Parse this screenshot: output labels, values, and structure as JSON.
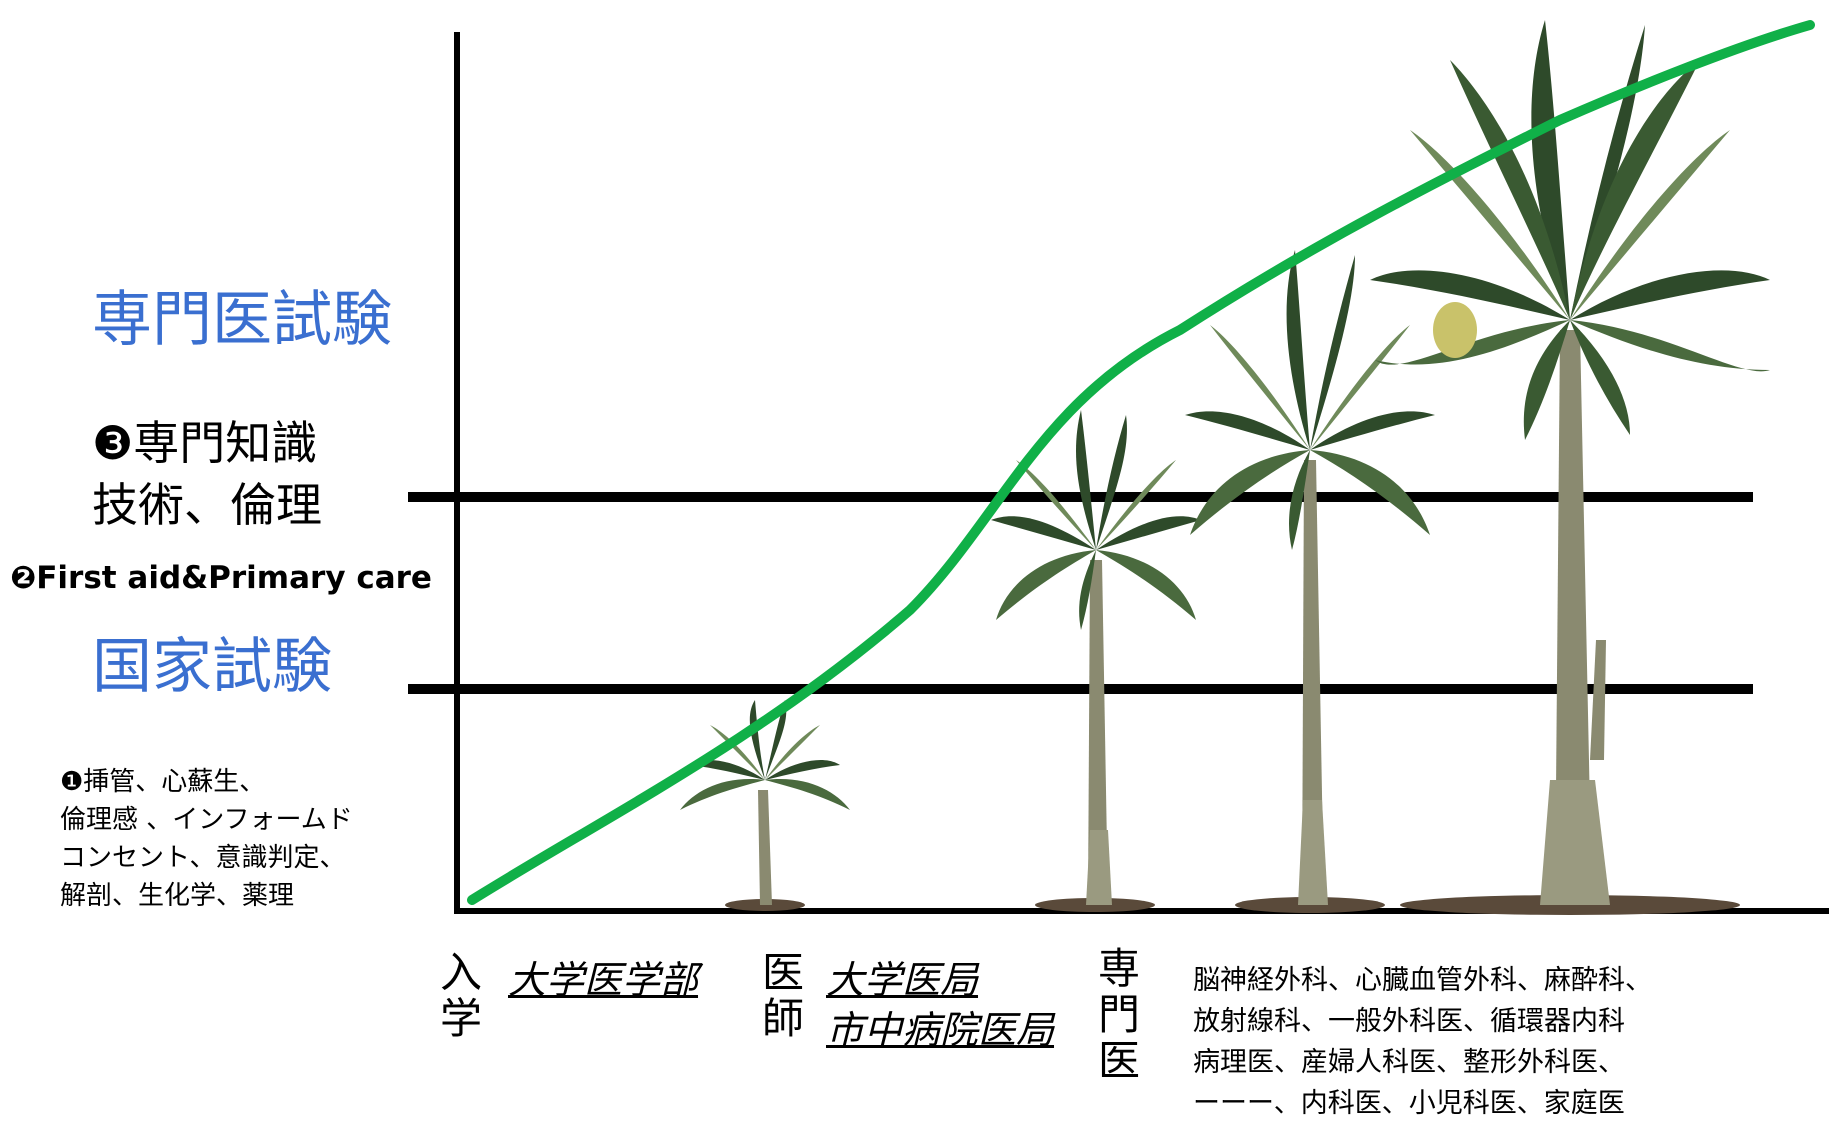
{
  "labels": {
    "specialist_exam": "専門医試験",
    "item3_line1": "❸専門知識",
    "item3_line2": "技術、倫理",
    "item2": "❷First aid&Primary care",
    "national_exam": "国家試験",
    "item1_lines": [
      "❶挿管、心蘇生、",
      "倫理感 、インフォームド",
      "コンセント、意識判定、",
      "解剖、生化学、薬理"
    ]
  },
  "stages": {
    "admission": "入学",
    "medical_school": "大学医学部",
    "doctor": "医師",
    "university_office": "大学医局",
    "city_hospital_office": "市中病院医局",
    "specialist": "専門医"
  },
  "specialties": [
    "脳神経外科、心臓血管外科、麻酔科、",
    "放射線科、一般外科医、循環器内科",
    "病理医、産婦人科医、整形外科医、",
    "ーーー、内科医、小児科医、家庭医"
  ],
  "colors": {
    "curve": "#10b048",
    "exam_text": "#3a6fd0",
    "axis": "#000000",
    "foliage_dark": "#2e4a2a",
    "foliage_light": "#6f8a5a",
    "trunk": "#8a8a70",
    "ground": "#5a4a3a"
  },
  "icons": [
    "palm-tree-icon"
  ]
}
